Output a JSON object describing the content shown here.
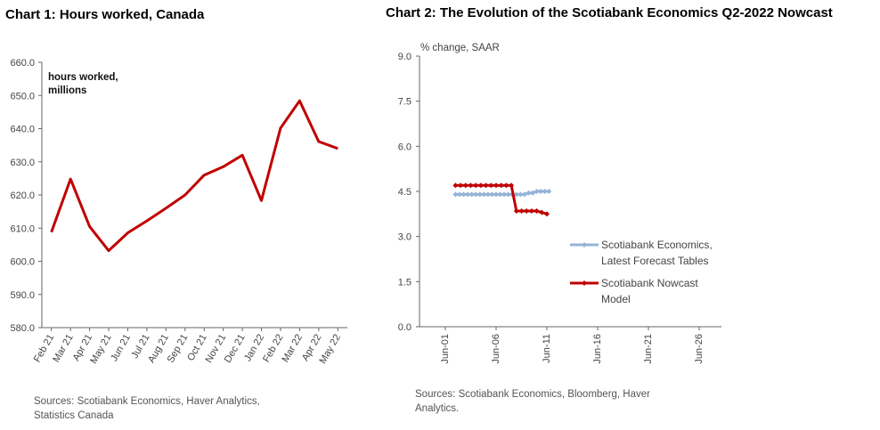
{
  "chart_data": [
    {
      "type": "line",
      "title": "Chart 1: Hours worked, Canada",
      "annotation": [
        "hours worked,",
        "millions"
      ],
      "categories": [
        "Feb 21",
        "Mar 21",
        "Apr 21",
        "May 21",
        "Jun 21",
        "Jul 21",
        "Aug 21",
        "Sep 21",
        "Oct 21",
        "Nov 21",
        "Dec 21",
        "Jan 22",
        "Feb 22",
        "Mar 22",
        "Apr 22",
        "May 22"
      ],
      "series": [
        {
          "values": [
            608.8,
            624.8,
            610.5,
            603.2,
            608.6,
            612.2,
            616.0,
            620.0,
            626.0,
            628.5,
            632.0,
            618.3,
            640.2,
            648.4,
            636.1,
            634.0
          ],
          "color": "#c00000"
        }
      ],
      "ylim": [
        580,
        660
      ],
      "yticks": [
        "580.0",
        "590.0",
        "600.0",
        "610.0",
        "620.0",
        "630.0",
        "640.0",
        "650.0",
        "660.0"
      ],
      "source": [
        "Sources: Scotiabank Economics, Haver Analytics,",
        "Statistics Canada"
      ],
      "grid": false
    },
    {
      "type": "line",
      "title": "Chart 2: The Evolution of the Scotiabank Economics Q2-2022 Nowcast",
      "ylabel": "% change, SAAR",
      "ylim": [
        0,
        9
      ],
      "yticks": [
        "0.0",
        "1.5",
        "3.0",
        "4.5",
        "6.0",
        "7.5",
        "9.0"
      ],
      "xticks": [
        "Jun-01",
        "Jun-06",
        "Jun-11",
        "Jun-16",
        "Jun-21",
        "Jun-26"
      ],
      "series": [
        {
          "name": "Scotiabank Economics, Latest Forecast Tables",
          "color": "#95b3d7",
          "x": [
            1.0,
            1.4,
            1.8,
            2.2,
            2.6,
            3.0,
            3.4,
            3.8,
            4.2,
            4.6,
            5.0,
            5.4,
            5.8,
            6.2,
            6.6,
            7.0,
            7.4,
            7.8,
            8.2,
            8.6,
            9.0,
            9.4,
            9.8,
            10.2
          ],
          "values": [
            4.4,
            4.4,
            4.4,
            4.4,
            4.4,
            4.4,
            4.4,
            4.4,
            4.4,
            4.4,
            4.4,
            4.4,
            4.4,
            4.4,
            4.4,
            4.4,
            4.4,
            4.4,
            4.45,
            4.45,
            4.5,
            4.5,
            4.5,
            4.5
          ]
        },
        {
          "name": "Scotiabank Nowcast Model",
          "color": "#c00000",
          "x": [
            1.0,
            1.5,
            2.0,
            2.5,
            3.0,
            3.5,
            4.0,
            4.5,
            5.0,
            5.5,
            6.0,
            6.5,
            7.0,
            7.5,
            8.0,
            8.5,
            9.0,
            9.5,
            10.0
          ],
          "values": [
            4.7,
            4.7,
            4.7,
            4.7,
            4.7,
            4.7,
            4.7,
            4.7,
            4.7,
            4.7,
            4.7,
            4.7,
            3.85,
            3.85,
            3.85,
            3.85,
            3.85,
            3.8,
            3.75
          ]
        }
      ],
      "legend": [
        "Scotiabank Economics,",
        "Latest Forecast Tables",
        "Scotiabank Nowcast",
        "Model"
      ],
      "source": [
        "Sources: Scotiabank Economics, Bloomberg, Haver",
        "Analytics."
      ],
      "grid": false
    }
  ]
}
